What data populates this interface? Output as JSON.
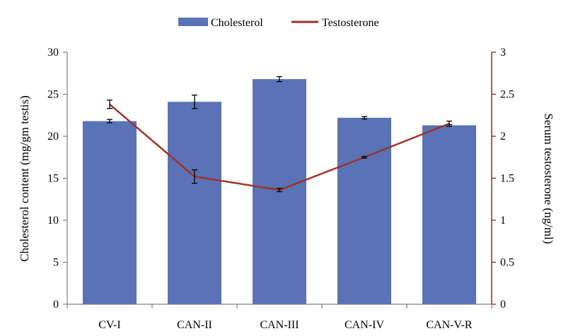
{
  "chart_data": {
    "type": "bar",
    "categories": [
      "CV-I",
      "CAN-II",
      "CAN-III",
      "CAN-IV",
      "CAN-V-R"
    ],
    "series": [
      {
        "name": "Cholesterol",
        "kind": "bar",
        "axis": "left",
        "values": [
          21.8,
          24.1,
          26.8,
          22.2,
          21.3
        ],
        "errors": [
          0.2,
          0.8,
          0.3,
          0.15,
          0.1
        ]
      },
      {
        "name": "Testosterone",
        "kind": "line",
        "axis": "right",
        "values": [
          2.38,
          1.52,
          1.36,
          1.75,
          2.15
        ],
        "errors": [
          0.05,
          0.08,
          0.02,
          0.01,
          0.03
        ]
      }
    ],
    "ylabel": "Cholesterol content (mg/gm testis)",
    "y2label": "Serum testosterone (ng/ml)",
    "ylim": [
      0,
      30
    ],
    "yticks": [
      "0",
      "5",
      "10",
      "15",
      "20",
      "25",
      "30"
    ],
    "y2lim": [
      0,
      3
    ],
    "y2ticks": [
      "0",
      "0.5",
      "1",
      "1.5",
      "2",
      "2.5",
      "3"
    ],
    "legend": {
      "position": "top",
      "entries": [
        "Cholesterol",
        "Testosterone"
      ]
    },
    "grid": false,
    "colors": {
      "bar": "#5a73b6",
      "line": "#a0322a",
      "axis": "#7f7f7f"
    }
  }
}
